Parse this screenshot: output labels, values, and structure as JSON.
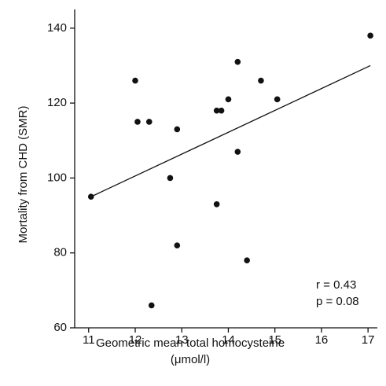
{
  "chart_data": {
    "type": "scatter",
    "xlabel": [
      "Geometric mean total homocysteine",
      "(μmol/l)"
    ],
    "ylabel": "Mortality from CHD (SMR)",
    "x": [
      11.05,
      12.0,
      12.05,
      12.3,
      12.35,
      12.75,
      12.9,
      12.9,
      13.75,
      13.75,
      13.85,
      14.0,
      14.2,
      14.2,
      14.4,
      14.7,
      15.05,
      17.05
    ],
    "values": [
      95,
      126,
      115,
      115,
      66,
      100,
      113,
      82,
      93,
      118,
      118,
      121,
      131,
      107,
      78,
      126,
      121,
      138
    ],
    "color": "#111111",
    "fit_line": {
      "x": [
        11.05,
        17.05
      ],
      "y": [
        95,
        130
      ]
    },
    "xlim": [
      10.7,
      17.2
    ],
    "ylim": [
      60,
      145
    ],
    "xticks": [
      11,
      12,
      13,
      14,
      15,
      16,
      17
    ],
    "yticks": [
      60,
      80,
      100,
      120,
      140
    ],
    "annotations": [
      "r = 0.43",
      "p = 0.08"
    ]
  }
}
